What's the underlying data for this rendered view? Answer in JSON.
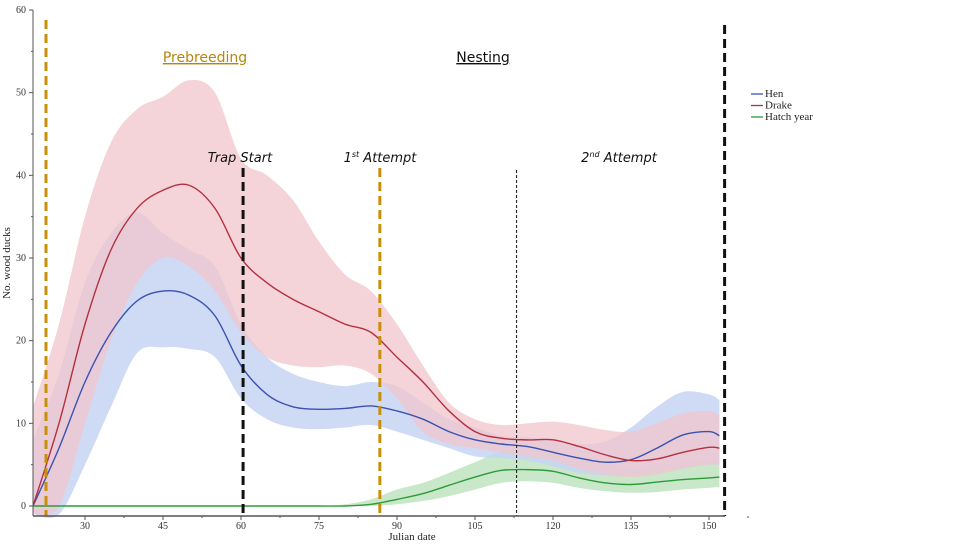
{
  "chart_data": {
    "type": "area",
    "title": "",
    "xlabel": "Julian date",
    "ylabel": "No. wood ducks",
    "xlim": [
      20,
      153
    ],
    "ylim": [
      -1.2,
      60
    ],
    "x_ticks": [
      30,
      45,
      60,
      75,
      90,
      105,
      120,
      135,
      150
    ],
    "y_ticks": [
      0,
      10,
      20,
      30,
      40,
      50,
      60
    ],
    "grid": false,
    "legend_position": "right",
    "x": [
      20,
      25,
      30,
      35,
      40,
      45,
      50,
      55,
      60,
      65,
      70,
      75,
      80,
      85,
      90,
      95,
      100,
      105,
      110,
      115,
      120,
      125,
      130,
      135,
      140,
      145,
      150,
      152
    ],
    "series": [
      {
        "name": "Hen",
        "color": "#3a52b0",
        "band_color": "#c7d4f3",
        "mean": [
          0,
          7,
          15,
          21,
          24.8,
          26,
          25.5,
          23,
          17,
          13.5,
          12,
          11.7,
          11.8,
          12.1,
          11.5,
          10.5,
          9,
          8,
          7.5,
          7.2,
          6.5,
          5.8,
          5.3,
          5.6,
          7,
          8.6,
          9,
          8.5
        ],
        "lower": [
          -1,
          -1,
          5,
          12,
          18.5,
          19.2,
          19,
          18,
          13,
          10.5,
          9.5,
          9.3,
          9.5,
          9.8,
          9,
          8,
          7,
          6,
          5.8,
          5.5,
          4.8,
          4,
          3.7,
          3.8,
          4.2,
          4.6,
          5,
          5
        ],
        "upper": [
          8,
          16,
          27,
          33,
          35.5,
          33,
          31,
          29,
          22,
          18,
          16,
          15,
          14.5,
          15,
          14.5,
          12.5,
          10.5,
          9.5,
          8.5,
          8.3,
          8,
          7.5,
          7.8,
          9.5,
          12,
          13.8,
          13.5,
          12.8
        ]
      },
      {
        "name": "Drake",
        "color": "#b5303f",
        "band_color": "#f0c6cc",
        "mean": [
          0,
          10,
          22,
          31,
          36,
          38.2,
          38.8,
          36,
          30,
          27,
          25,
          23.5,
          22,
          21,
          18,
          15,
          11.5,
          9,
          8.2,
          8,
          8,
          7.2,
          6.2,
          5.5,
          5.7,
          6.5,
          7.1,
          7
        ],
        "lower": [
          -1,
          0,
          10,
          20,
          27,
          30,
          29,
          26,
          21,
          18,
          17,
          16.8,
          17,
          16,
          13,
          9,
          7.5,
          7,
          6.5,
          6,
          5.5,
          4.5,
          3.8,
          3.5,
          3.8,
          4.5,
          5,
          5
        ],
        "upper": [
          12,
          22,
          35,
          44,
          48,
          49.5,
          51.5,
          50,
          42,
          40,
          37,
          32,
          28,
          26,
          22,
          17,
          12.5,
          10.5,
          9.8,
          10,
          10.2,
          9.8,
          9.2,
          9,
          10,
          11.2,
          11.5,
          11
        ]
      },
      {
        "name": "Hatch year",
        "color": "#2e9b3a",
        "band_color": "#bfe3c0",
        "mean": [
          0,
          0,
          0,
          0,
          0,
          0,
          0,
          0,
          0,
          0,
          0,
          0,
          0,
          0.2,
          0.8,
          1.5,
          2.5,
          3.5,
          4.3,
          4.4,
          4.2,
          3.4,
          2.8,
          2.6,
          2.9,
          3.2,
          3.4,
          3.5
        ],
        "lower": [
          0,
          0,
          0,
          0,
          0,
          0,
          0,
          0,
          0,
          0,
          0,
          0,
          0,
          0,
          0.2,
          0.6,
          1.2,
          2,
          2.8,
          3,
          2.8,
          2.2,
          1.8,
          1.6,
          1.7,
          2,
          2.2,
          2.3
        ],
        "upper": [
          0,
          0,
          0,
          0,
          0,
          0,
          0,
          0,
          0,
          0,
          0,
          0,
          0.2,
          0.8,
          2,
          2.8,
          4,
          5.3,
          6.6,
          7,
          6.5,
          5.8,
          5,
          4.6,
          4.9,
          5.3,
          5.7,
          5.8
        ]
      }
    ],
    "phases": [
      {
        "label": "Prebreeding",
        "x": 38,
        "color": "#b8860b"
      },
      {
        "label": "Nesting",
        "x": 104.5,
        "color": "#111111"
      }
    ],
    "vlines": [
      {
        "x": 22.5,
        "color": "#c8900a",
        "style": "dashed",
        "label": ""
      },
      {
        "x": 60.4,
        "color": "#111111",
        "style": "dashed",
        "label": "Trap Start"
      },
      {
        "x": 86.7,
        "color": "#c8900a",
        "style": "dashed",
        "label": "1st Attempt",
        "label_main": "1",
        "label_sup": "st",
        "label_rest": " Attempt"
      },
      {
        "x": 113,
        "color": "#111111",
        "style": "dotted",
        "label": "2nd Attempt",
        "label_main": "2",
        "label_sup": "nd",
        "label_rest": " Attempt"
      },
      {
        "x": 153,
        "color": "#111111",
        "style": "dashed",
        "label": ""
      }
    ]
  }
}
